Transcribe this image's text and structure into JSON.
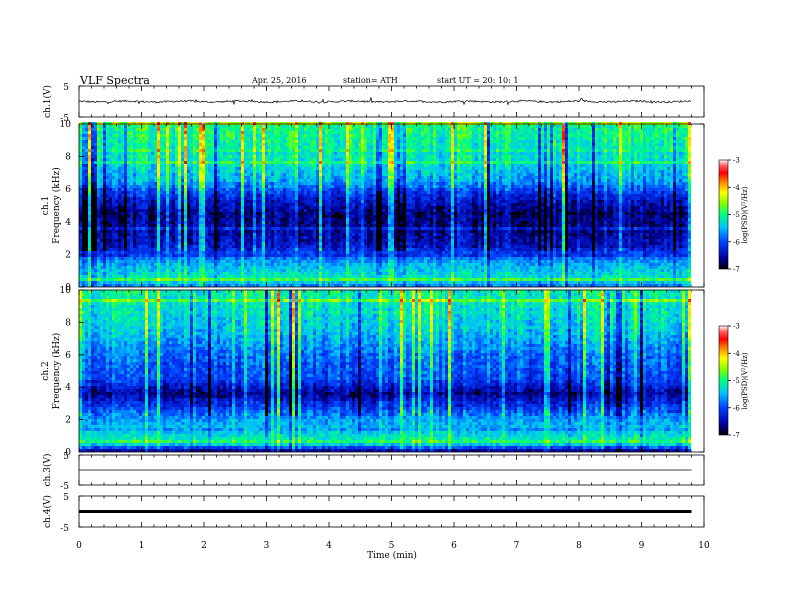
{
  "header": {
    "title": "VLF  Spectra",
    "date": "Apr. 25, 2016",
    "station": "station= ATH",
    "start": "start  UT  =   20: 10: 1"
  },
  "chart_data": [
    {
      "type": "line",
      "id": "ch1",
      "ylabel": "ch.1(V)",
      "xlim": [
        0,
        10
      ],
      "ylim": [
        -5,
        5
      ],
      "yticks": [
        "5",
        "-5"
      ],
      "baseline": 0,
      "noise_amplitude": 0.3,
      "time_end_min": 9.8
    },
    {
      "type": "heatmap",
      "id": "ch1-spec",
      "ylabel_top": "ch.1",
      "ylabel": "Frequency  (kHz)",
      "xlim": [
        0,
        10
      ],
      "ylim": [
        0,
        10
      ],
      "yticks": [
        "0",
        "2",
        "4",
        "6",
        "8",
        "10"
      ],
      "colorbar": {
        "label": "log(PSD)(V²/Hz)",
        "range": [
          -7,
          -3
        ],
        "ticks": [
          "-3",
          "-4",
          "-5",
          "-6",
          "-7"
        ],
        "colors": [
          "#ffffff",
          "#ff4040",
          "#ff0000",
          "#ff8000",
          "#ffff00",
          "#80ff00",
          "#00ff80",
          "#00c0ff",
          "#0040ff",
          "#0000a0",
          "#000000"
        ]
      },
      "band_profile_khz_to_logpsd": [
        [
          0,
          -5.8
        ],
        [
          0.5,
          -5.2
        ],
        [
          1.5,
          -5.6
        ],
        [
          2.5,
          -6.4
        ],
        [
          3.5,
          -6.6
        ],
        [
          4.5,
          -6.7
        ],
        [
          5.5,
          -6.3
        ],
        [
          6.5,
          -5.6
        ],
        [
          8,
          -5.2
        ],
        [
          10,
          -5.0
        ]
      ]
    },
    {
      "type": "heatmap",
      "id": "ch2-spec",
      "ylabel_top": "ch.2",
      "ylabel": "Frequency  (kHz)",
      "xlim": [
        0,
        10
      ],
      "ylim": [
        0,
        10
      ],
      "yticks": [
        "0",
        "2",
        "4",
        "6",
        "8",
        "10"
      ],
      "colorbar": {
        "label": "log(PSD)(V²/Hz)",
        "range": [
          -7,
          -3
        ],
        "ticks": [
          "-3",
          "-4",
          "-5",
          "-6",
          "-7"
        ],
        "colors": [
          "#ffffff",
          "#ff4040",
          "#ff0000",
          "#ff8000",
          "#ffff00",
          "#80ff00",
          "#00ff80",
          "#00c0ff",
          "#0040ff",
          "#0000a0",
          "#000000"
        ]
      },
      "band_profile_khz_to_logpsd": [
        [
          0,
          -6.8
        ],
        [
          0.6,
          -5.0
        ],
        [
          1.2,
          -5.4
        ],
        [
          2.0,
          -5.6
        ],
        [
          3.0,
          -6.2
        ],
        [
          3.6,
          -6.6
        ],
        [
          4.5,
          -6.0
        ],
        [
          6,
          -5.8
        ],
        [
          7.5,
          -5.4
        ],
        [
          10,
          -5.1
        ]
      ]
    },
    {
      "type": "line",
      "id": "ch3",
      "ylabel": "ch.3(V)",
      "xlim": [
        0,
        10
      ],
      "ylim": [
        -5,
        5
      ],
      "yticks": [
        "5",
        "-5"
      ],
      "baseline": 0,
      "noise_amplitude": 0.0,
      "time_end_min": 9.8
    },
    {
      "type": "line",
      "id": "ch4",
      "ylabel": "ch.4(V)",
      "xlim": [
        0,
        10
      ],
      "ylim": [
        -5,
        5
      ],
      "yticks": [
        "5",
        "-5"
      ],
      "baseline": 0,
      "noise_amplitude": 0.0,
      "time_end_min": 9.8,
      "thick": true
    }
  ],
  "xaxis": {
    "label": "Time  (min)",
    "ticks": [
      "0",
      "1",
      "2",
      "3",
      "4",
      "5",
      "6",
      "7",
      "8",
      "9",
      "10"
    ]
  }
}
